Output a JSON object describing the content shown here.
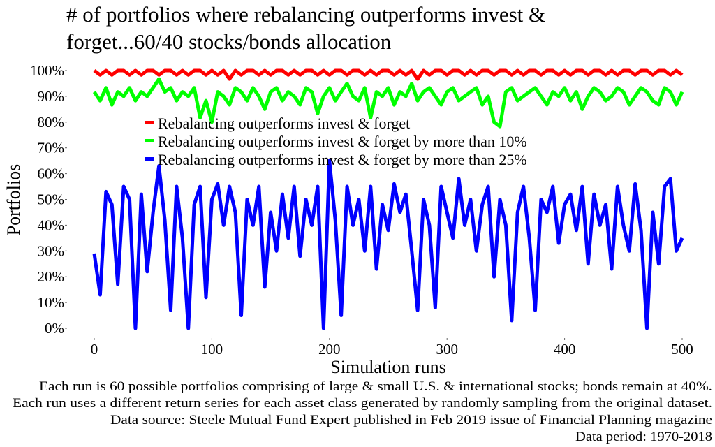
{
  "chart_data": {
    "type": "line",
    "title_lines": [
      "# of portfolios where rebalancing outperforms invest &",
      "forget...60/40 stocks/bonds allocation"
    ],
    "xlabel": "Simulation runs",
    "ylabel": "Portfolios",
    "xlim": [
      0,
      500
    ],
    "ylim": [
      0,
      100
    ],
    "x_ticks": [
      0,
      100,
      200,
      300,
      400,
      500
    ],
    "x_tick_labels": [
      "0",
      "100",
      "200",
      "300",
      "400",
      "500"
    ],
    "y_ticks": [
      0,
      10,
      20,
      30,
      40,
      50,
      60,
      70,
      80,
      90,
      100
    ],
    "y_tick_labels": [
      "0%",
      "10%",
      "20%",
      "30%",
      "40%",
      "50%",
      "60%",
      "70%",
      "80%",
      "90%",
      "100%"
    ],
    "grid": false,
    "legend_position": "upper-left inside plot",
    "x_step": 5,
    "series": [
      {
        "name": "Rebalancing outperforms invest & forget",
        "color": "#ff0000",
        "values": [
          100,
          98.3,
          100,
          98.3,
          100,
          100,
          98.3,
          100,
          98.3,
          100,
          100,
          98.3,
          100,
          100,
          98.3,
          100,
          98.3,
          100,
          100,
          98.3,
          100,
          98.3,
          100,
          96.7,
          100,
          98.3,
          100,
          100,
          98.3,
          100,
          98.3,
          100,
          100,
          98.3,
          100,
          98.3,
          100,
          100,
          98.3,
          100,
          98.3,
          100,
          100,
          98.3,
          100,
          100,
          98.3,
          100,
          98.3,
          100,
          100,
          98.3,
          100,
          98.3,
          100,
          96.7,
          100,
          98.3,
          100,
          100,
          98.3,
          100,
          100,
          98.3,
          100,
          98.3,
          100,
          100,
          98.3,
          100,
          100,
          98.3,
          100,
          98.3,
          100,
          100,
          98.3,
          100,
          100,
          98.3,
          100,
          98.3,
          100,
          100,
          98.3,
          100,
          100,
          98.3,
          100,
          98.3,
          100,
          100,
          98.3,
          100,
          100,
          98.3,
          100,
          100,
          98.3,
          100,
          98.3
        ]
      },
      {
        "name": "Rebalancing outperforms invest & forget by more than 10%",
        "color": "#00ff00",
        "values": [
          91.7,
          88.3,
          93.3,
          86.7,
          91.7,
          90,
          93.3,
          88.3,
          91.7,
          90,
          93.3,
          96.7,
          91.7,
          93.3,
          88.3,
          91.7,
          90,
          93.3,
          81.7,
          88.3,
          80,
          91.7,
          90,
          86.7,
          93.3,
          91.7,
          88.3,
          93.3,
          90,
          85,
          91.7,
          93.3,
          88.3,
          91.7,
          90,
          86.7,
          93.3,
          91.7,
          83.3,
          90,
          93.3,
          88.3,
          91.7,
          95,
          90,
          88.3,
          93.3,
          81.7,
          91.7,
          90,
          93.3,
          86.7,
          91.7,
          90,
          95,
          88.3,
          91.7,
          93.3,
          90,
          86.7,
          91.7,
          93.3,
          88.3,
          90,
          91.7,
          93.3,
          86.7,
          90,
          80,
          78.3,
          91.7,
          93.3,
          88.3,
          90,
          91.7,
          93.3,
          90,
          86.7,
          91.7,
          90,
          93.3,
          88.3,
          91.7,
          85,
          90,
          93.3,
          91.7,
          88.3,
          90,
          93.3,
          91.7,
          86.7,
          90,
          93.3,
          91.7,
          88.3,
          86.7,
          93.3,
          91.7,
          86.7,
          91.7
        ]
      },
      {
        "name": "Rebalancing outperforms invest & forget by more than 25%",
        "color": "#0000ff",
        "values": [
          29,
          13,
          53,
          48,
          17,
          55,
          50,
          0,
          52,
          22,
          45,
          63,
          42,
          7,
          55,
          35,
          0,
          48,
          55,
          12,
          50,
          56,
          40,
          55,
          45,
          5,
          50,
          40,
          55,
          16,
          45,
          30,
          52,
          35,
          55,
          28,
          50,
          40,
          55,
          0,
          65,
          42,
          5,
          55,
          40,
          50,
          30,
          55,
          23,
          48,
          38,
          56,
          45,
          52,
          30,
          7,
          50,
          40,
          8,
          55,
          45,
          35,
          58,
          40,
          50,
          30,
          48,
          55,
          20,
          50,
          40,
          3,
          45,
          55,
          35,
          7,
          50,
          45,
          55,
          33,
          48,
          52,
          38,
          55,
          25,
          52,
          40,
          48,
          23,
          55,
          40,
          30,
          56,
          38,
          0,
          45,
          25,
          55,
          58,
          30,
          35
        ]
      }
    ]
  },
  "captions": [
    "Each run is 60 possible portfolios comprising of large & small U.S. & international stocks; bonds remain at 40%.",
    "Each run uses a different return series for each asset class generated by randomly sampling from the original dataset.",
    "Data source: Steele Mutual Fund Expert published in Feb 2019 issue of Financial Planning magazine",
    "Data period: 1970-2018"
  ]
}
